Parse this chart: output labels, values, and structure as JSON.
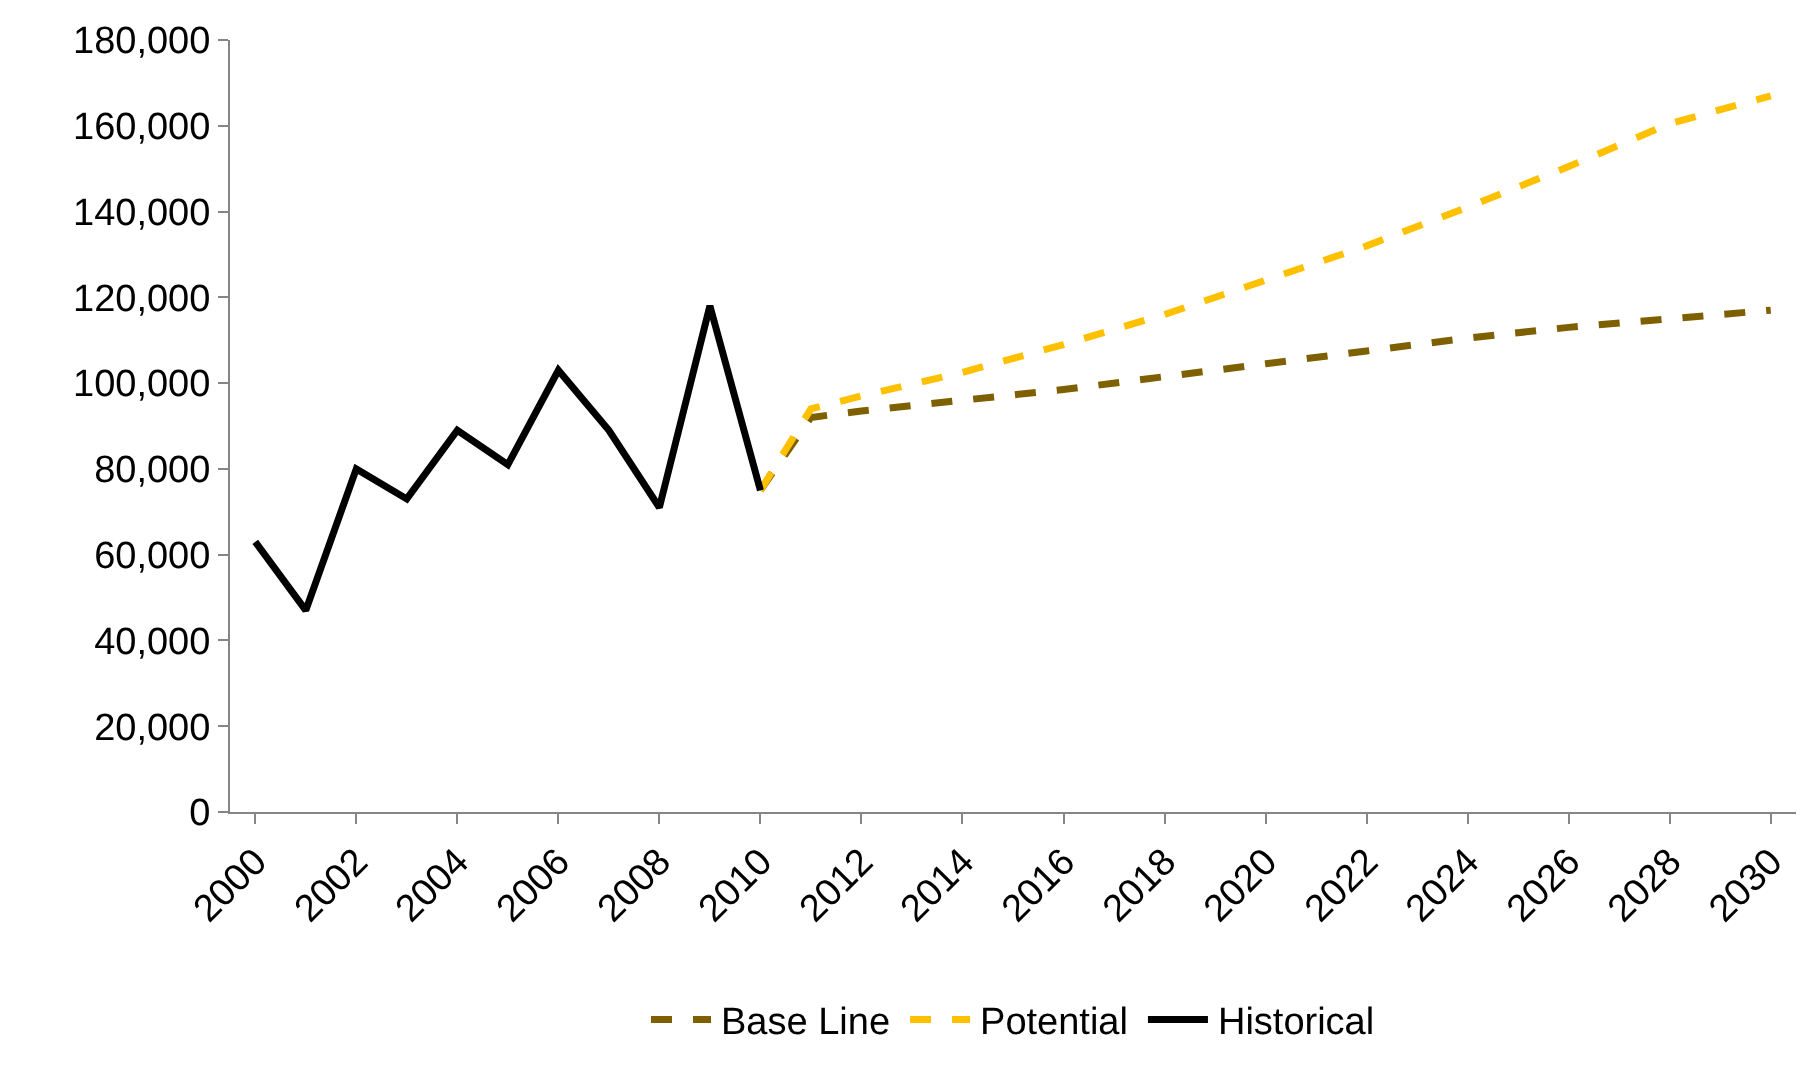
{
  "chart_data": {
    "type": "line",
    "xlim": [
      1999.5,
      2030.5
    ],
    "xticks": [
      2000,
      2002,
      2004,
      2006,
      2008,
      2010,
      2012,
      2014,
      2016,
      2018,
      2020,
      2022,
      2024,
      2026,
      2028,
      2030
    ],
    "ylim": [
      0,
      180000
    ],
    "yticks": [
      0,
      {
        "value": 20000,
        "label": "20,000"
      },
      {
        "value": 40000,
        "label": "40,000"
      },
      {
        "value": 60000,
        "label": "60,000"
      },
      {
        "value": 80000,
        "label": "80,000"
      },
      {
        "value": 100000,
        "label": "100,000"
      },
      {
        "value": 120000,
        "label": "120,000"
      },
      {
        "value": 140000,
        "label": "140,000"
      },
      {
        "value": 160000,
        "label": "160,000"
      },
      {
        "value": 180000,
        "label": "180,000"
      }
    ],
    "grid": false,
    "legend": "bottom",
    "marker": "none",
    "series": [
      {
        "name": "Base Line",
        "color": "#7f6000",
        "line_style": "dashed",
        "x": [
          2010,
          2011,
          2012,
          2014,
          2016,
          2018,
          2020,
          2022,
          2024,
          2026,
          2028,
          2030
        ],
        "values": [
          75000,
          92000,
          93500,
          96000,
          98500,
          101500,
          104500,
          107500,
          110500,
          113000,
          115000,
          117000
        ]
      },
      {
        "name": "Potential",
        "color": "#ffc000",
        "line_style": "dashed",
        "x": [
          2010,
          2011,
          2012,
          2014,
          2016,
          2018,
          2020,
          2022,
          2024,
          2026,
          2028,
          2030
        ],
        "values": [
          75000,
          94000,
          97000,
          102500,
          109000,
          116000,
          124000,
          132000,
          141000,
          150500,
          160500,
          167000
        ]
      },
      {
        "name": "Historical",
        "color": "#000000",
        "line_style": "solid",
        "x": [
          2000,
          2001,
          2002,
          2003,
          2004,
          2005,
          2006,
          2007,
          2008,
          2009,
          2010
        ],
        "values": [
          63000,
          47000,
          80000,
          73000,
          89000,
          81000,
          103000,
          89000,
          71000,
          118000,
          75000
        ]
      }
    ]
  }
}
